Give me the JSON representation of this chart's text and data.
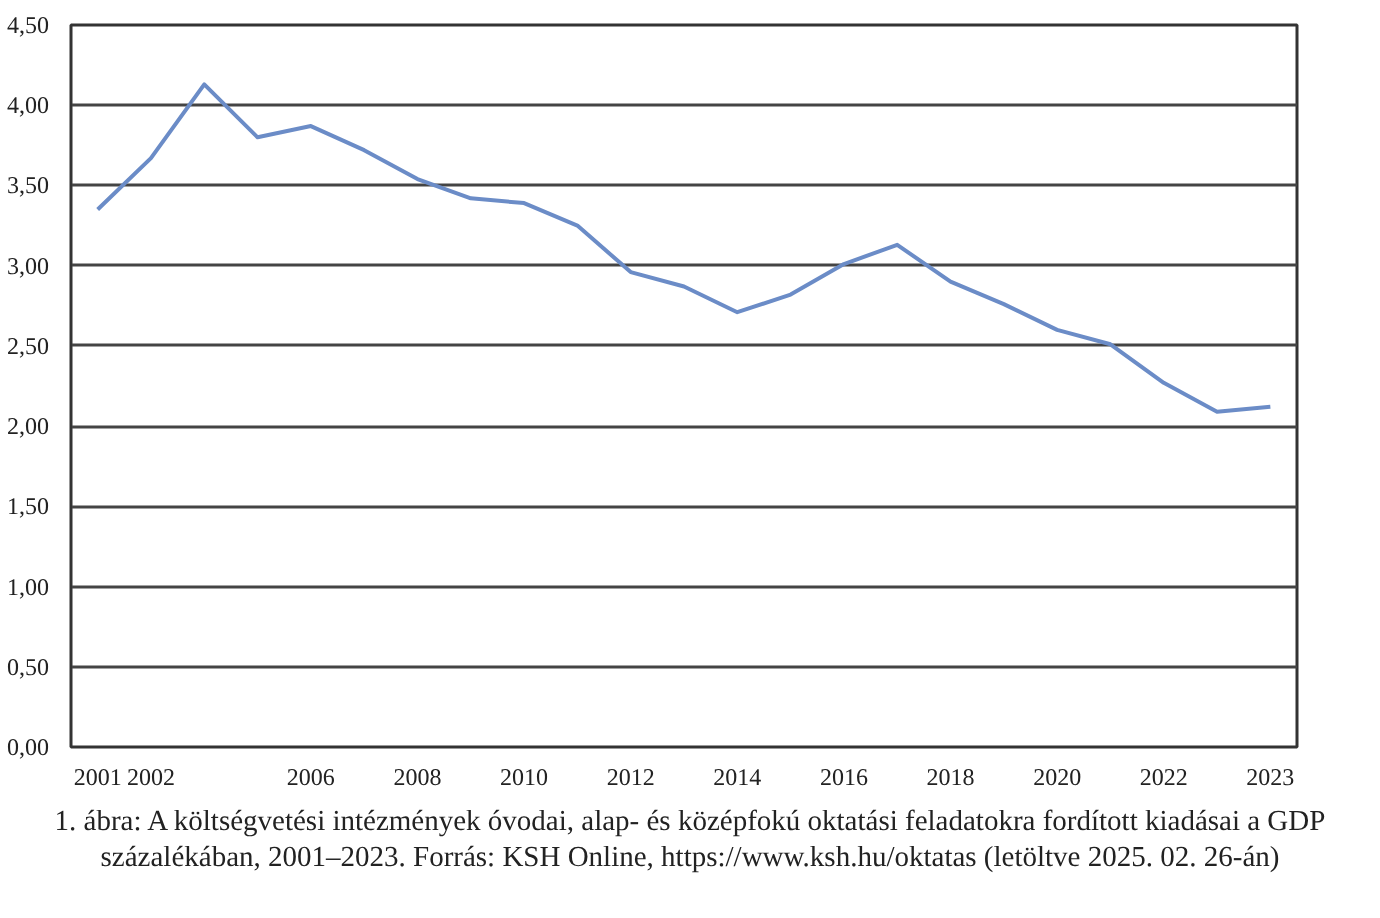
{
  "chart_data": {
    "type": "line",
    "categories": [
      "2001",
      "2002",
      null,
      null,
      "2006",
      null,
      "2008",
      null,
      "2010",
      null,
      "2012",
      null,
      "2014",
      null,
      "2016",
      null,
      "2018",
      null,
      "2020",
      null,
      "2022",
      null,
      "2023"
    ],
    "series": [
      {
        "color": "#6b8cc7",
        "values": [
          3.35,
          3.67,
          4.13,
          3.8,
          3.87,
          3.72,
          3.54,
          3.42,
          3.39,
          3.25,
          2.96,
          2.87,
          2.71,
          2.82,
          3.01,
          3.13,
          2.9,
          2.76,
          2.6,
          2.51,
          2.27,
          2.09,
          2.12
        ]
      }
    ],
    "ylim": [
      0,
      4.5
    ],
    "yticks": [
      {
        "value": 0,
        "label": "0,00"
      },
      {
        "value": 0.5,
        "label": "0,50"
      },
      {
        "value": 1,
        "label": "1,00"
      },
      {
        "value": 1.5,
        "label": "1,50"
      },
      {
        "value": 2,
        "label": "2,00"
      },
      {
        "value": 2.5,
        "label": "2,50"
      },
      {
        "value": 3,
        "label": "3,00"
      },
      {
        "value": 3.5,
        "label": "3,50"
      },
      {
        "value": 4,
        "label": "4,00"
      },
      {
        "value": 4.5,
        "label": "4,50"
      }
    ],
    "grid": "y",
    "marker": "none",
    "line_style": "solid",
    "annotations": [
      "1. ábra: A költségvetési intézmények óvodai, alap- és középfokú oktatási feladatokra fordított kiadásai a GDP százalékában, 2001–2023. Forrás: KSH Online, https://www.ksh.hu/oktatas (letöltve 2025. 02. 26-án)"
    ]
  }
}
